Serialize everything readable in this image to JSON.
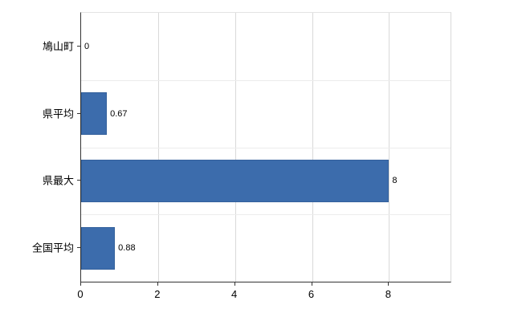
{
  "chart_data": {
    "type": "bar",
    "orientation": "horizontal",
    "title": "",
    "xlabel": "",
    "ylabel": "",
    "categories": [
      "鳩山町",
      "県平均",
      "県最大",
      "全国平均"
    ],
    "values": [
      0,
      0.67,
      8,
      0.88
    ],
    "value_labels": [
      "0",
      "0.67",
      "8",
      "0.88"
    ],
    "xlim": [
      0,
      9.6
    ],
    "x_ticks": [
      0,
      2,
      4,
      6,
      8
    ],
    "x_tick_labels": [
      "0",
      "2",
      "4",
      "6",
      "8"
    ],
    "grid": true,
    "legend": false,
    "colors": {
      "bar": "#3c6cac",
      "bar_border": "#34619c",
      "grid": "#d9d9d9",
      "axis": "#333333",
      "text": "#000000",
      "background": "#ffffff"
    }
  }
}
